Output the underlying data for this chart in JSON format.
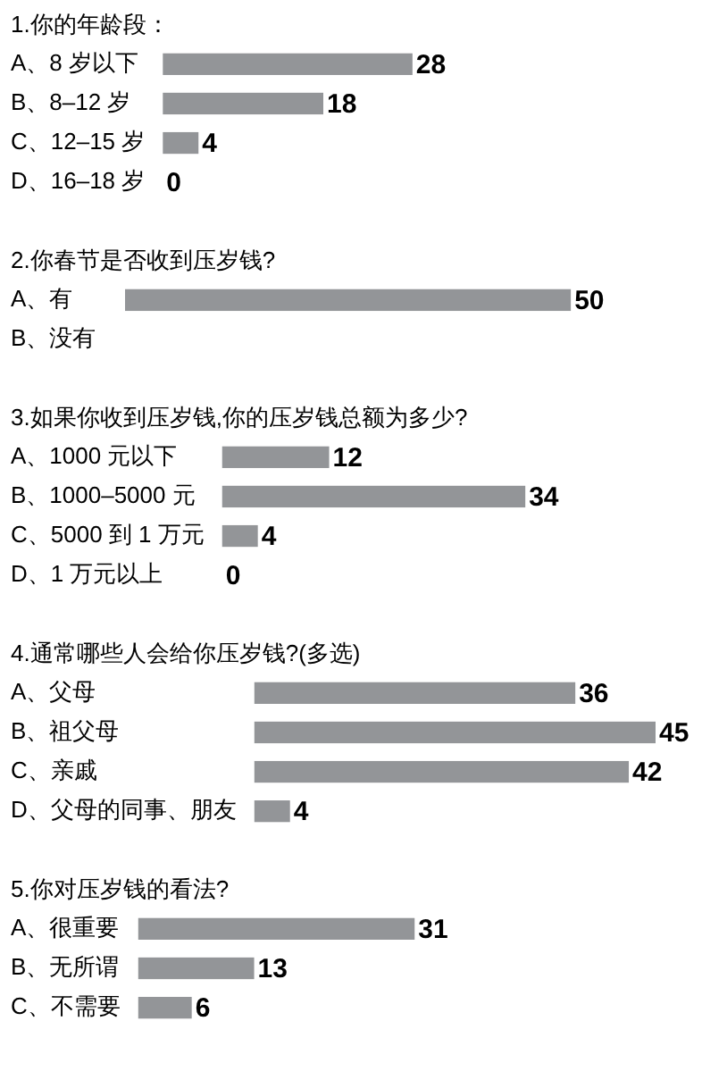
{
  "chart_data": [
    {
      "type": "bar",
      "orientation": "horizontal",
      "title": "1.你的年龄段：",
      "categories": [
        "A、8 岁以下",
        "B、8–12 岁",
        "C、12–15 岁",
        "D、16–18 岁"
      ],
      "values": [
        28,
        18,
        4,
        0
      ],
      "color": "#939598",
      "data_labels": true,
      "tick_labels": "y"
    },
    {
      "type": "bar",
      "orientation": "horizontal",
      "title": "2.你春节是否收到压岁钱?",
      "categories": [
        "A、有",
        "B、没有"
      ],
      "values": [
        50,
        null
      ],
      "color": "#939598",
      "data_labels": true,
      "tick_labels": "y"
    },
    {
      "type": "bar",
      "orientation": "horizontal",
      "title": "3.如果你收到压岁钱,你的压岁钱总额为多少?",
      "categories": [
        "A、1000 元以下",
        "B、1000–5000 元",
        "C、5000 到 1 万元",
        "D、1 万元以上"
      ],
      "values": [
        12,
        34,
        4,
        0
      ],
      "color": "#939598",
      "data_labels": true,
      "tick_labels": "y"
    },
    {
      "type": "bar",
      "orientation": "horizontal",
      "title": "4.通常哪些人会给你压岁钱?(多选)",
      "categories": [
        "A、父母",
        "B、祖父母",
        "C、亲戚",
        "D、父母的同事、朋友"
      ],
      "values": [
        36,
        45,
        42,
        4
      ],
      "color": "#939598",
      "data_labels": true,
      "tick_labels": "y"
    },
    {
      "type": "bar",
      "orientation": "horizontal",
      "title": "5.你对压岁钱的看法?",
      "categories": [
        "A、很重要",
        "B、无所谓",
        "C、不需要"
      ],
      "values": [
        31,
        13,
        6
      ],
      "color": "#939598",
      "data_labels": true,
      "tick_labels": "y"
    }
  ]
}
